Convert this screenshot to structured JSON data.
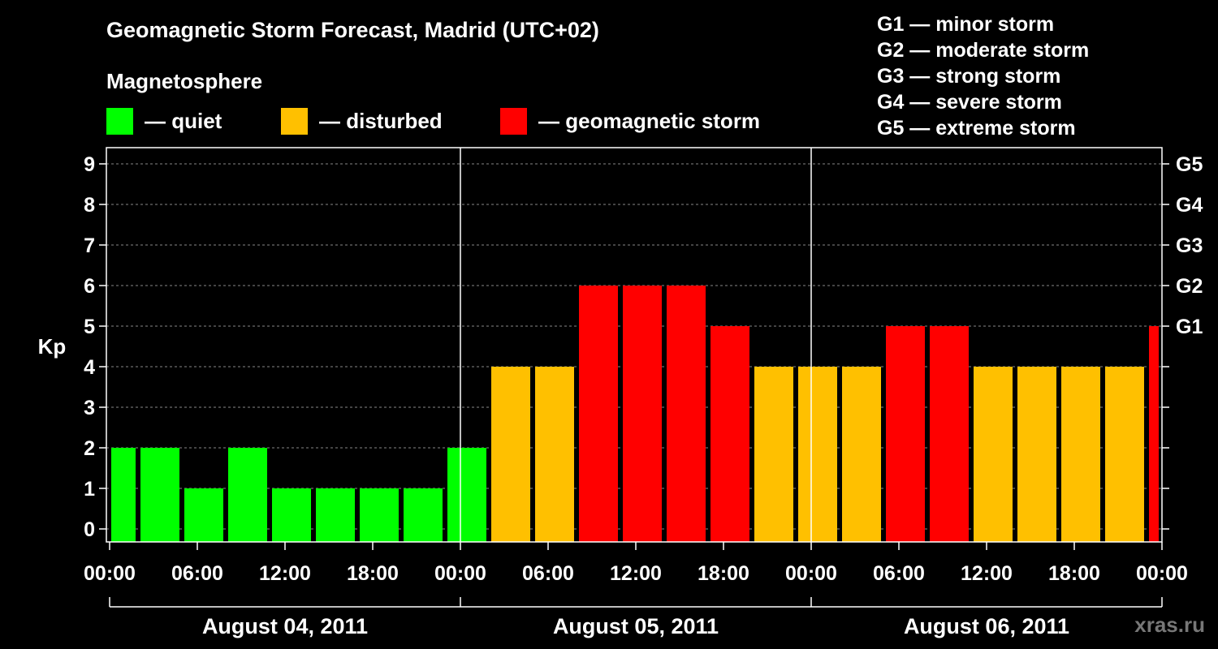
{
  "header": {
    "title": "Geomagnetic Storm Forecast, Madrid (UTC+02)",
    "subtitle": "Magnetosphere"
  },
  "legend": [
    {
      "label": "— quiet",
      "color": "#00ff00"
    },
    {
      "label": "— disturbed",
      "color": "#ffc000"
    },
    {
      "label": "— geomagnetic storm",
      "color": "#ff0000"
    }
  ],
  "storm_levels": [
    "G1 — minor storm",
    "G2 — moderate storm",
    "G3 — strong storm",
    "G4 — severe storm",
    "G5 — extreme storm"
  ],
  "credit": "xras.ru",
  "chart_data": {
    "type": "bar",
    "ylabel": "Kp",
    "ylim": [
      0,
      9
    ],
    "yticks": [
      "0",
      "1",
      "2",
      "3",
      "4",
      "5",
      "6",
      "7",
      "8",
      "9"
    ],
    "right_ticks": [
      {
        "kp": 5,
        "label": "G1"
      },
      {
        "kp": 6,
        "label": "G2"
      },
      {
        "kp": 7,
        "label": "G3"
      },
      {
        "kp": 8,
        "label": "G4"
      },
      {
        "kp": 9,
        "label": "G5"
      }
    ],
    "xticks": [
      "00:00",
      "06:00",
      "12:00",
      "18:00",
      "00:00",
      "06:00",
      "12:00",
      "18:00",
      "00:00",
      "06:00",
      "12:00",
      "18:00",
      "00:00"
    ],
    "days": [
      "August 04, 2011",
      "August 05, 2011",
      "August 06, 2011"
    ],
    "grid": true,
    "colors": {
      "quiet": "#00ff00",
      "disturbed": "#ffc000",
      "storm": "#ff0000"
    },
    "bars": [
      {
        "start": "2011-08-04 00:00",
        "end": "2011-08-04 02:00",
        "kp": 2,
        "level": "quiet"
      },
      {
        "start": "2011-08-04 02:00",
        "end": "2011-08-04 05:00",
        "kp": 2,
        "level": "quiet"
      },
      {
        "start": "2011-08-04 05:00",
        "end": "2011-08-04 08:00",
        "kp": 1,
        "level": "quiet"
      },
      {
        "start": "2011-08-04 08:00",
        "end": "2011-08-04 11:00",
        "kp": 2,
        "level": "quiet"
      },
      {
        "start": "2011-08-04 11:00",
        "end": "2011-08-04 14:00",
        "kp": 1,
        "level": "quiet"
      },
      {
        "start": "2011-08-04 14:00",
        "end": "2011-08-04 17:00",
        "kp": 1,
        "level": "quiet"
      },
      {
        "start": "2011-08-04 17:00",
        "end": "2011-08-04 20:00",
        "kp": 1,
        "level": "quiet"
      },
      {
        "start": "2011-08-04 20:00",
        "end": "2011-08-04 23:00",
        "kp": 1,
        "level": "quiet"
      },
      {
        "start": "2011-08-04 23:00",
        "end": "2011-08-05 02:00",
        "kp": 2,
        "level": "quiet"
      },
      {
        "start": "2011-08-05 02:00",
        "end": "2011-08-05 05:00",
        "kp": 4,
        "level": "disturbed"
      },
      {
        "start": "2011-08-05 05:00",
        "end": "2011-08-05 08:00",
        "kp": 4,
        "level": "disturbed"
      },
      {
        "start": "2011-08-05 08:00",
        "end": "2011-08-05 11:00",
        "kp": 6,
        "level": "storm"
      },
      {
        "start": "2011-08-05 11:00",
        "end": "2011-08-05 14:00",
        "kp": 6,
        "level": "storm"
      },
      {
        "start": "2011-08-05 14:00",
        "end": "2011-08-05 17:00",
        "kp": 6,
        "level": "storm"
      },
      {
        "start": "2011-08-05 17:00",
        "end": "2011-08-05 20:00",
        "kp": 5,
        "level": "storm"
      },
      {
        "start": "2011-08-05 20:00",
        "end": "2011-08-05 23:00",
        "kp": 4,
        "level": "disturbed"
      },
      {
        "start": "2011-08-05 23:00",
        "end": "2011-08-06 02:00",
        "kp": 4,
        "level": "disturbed"
      },
      {
        "start": "2011-08-06 02:00",
        "end": "2011-08-06 05:00",
        "kp": 4,
        "level": "disturbed"
      },
      {
        "start": "2011-08-06 05:00",
        "end": "2011-08-06 08:00",
        "kp": 5,
        "level": "storm"
      },
      {
        "start": "2011-08-06 08:00",
        "end": "2011-08-06 11:00",
        "kp": 5,
        "level": "storm"
      },
      {
        "start": "2011-08-06 11:00",
        "end": "2011-08-06 14:00",
        "kp": 4,
        "level": "disturbed"
      },
      {
        "start": "2011-08-06 14:00",
        "end": "2011-08-06 17:00",
        "kp": 4,
        "level": "disturbed"
      },
      {
        "start": "2011-08-06 17:00",
        "end": "2011-08-06 20:00",
        "kp": 4,
        "level": "disturbed"
      },
      {
        "start": "2011-08-06 20:00",
        "end": "2011-08-06 23:00",
        "kp": 4,
        "level": "disturbed"
      },
      {
        "start": "2011-08-06 23:00",
        "end": "2011-08-07 00:00",
        "kp": 5,
        "level": "storm"
      }
    ]
  }
}
